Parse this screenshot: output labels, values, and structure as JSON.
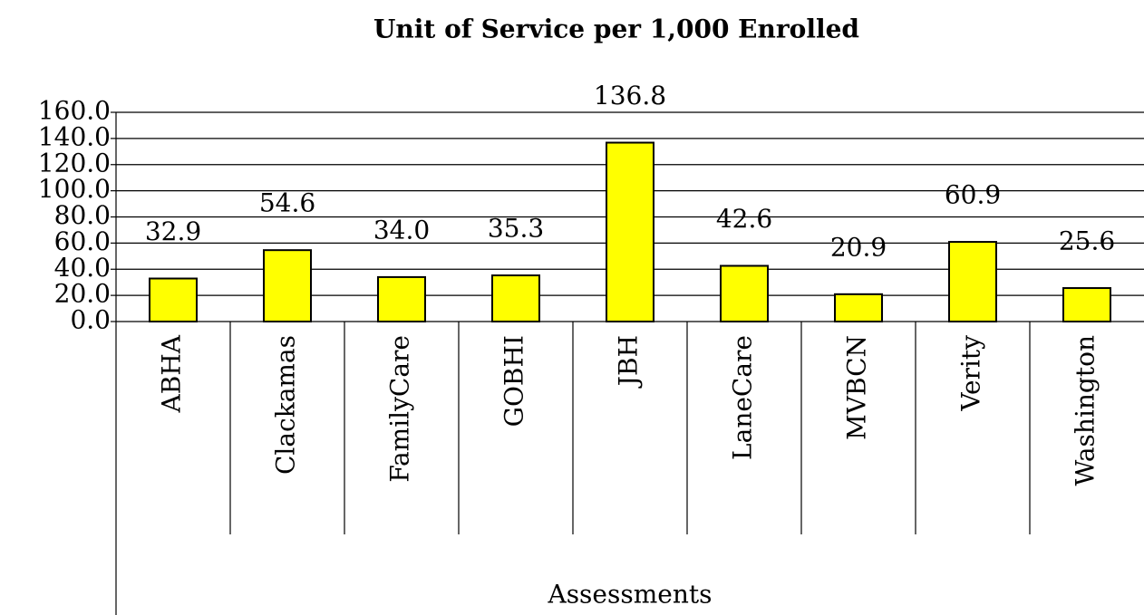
{
  "chart_data": {
    "type": "bar",
    "title": "Unit of Service per 1,000 Enrolled",
    "x_label": "Assessments",
    "categories": [
      "ABHA",
      "Clackamas",
      "FamilyCare",
      "GOBHI",
      "JBH",
      "LaneCare",
      "MVBCN",
      "Verity",
      "Washington"
    ],
    "values": [
      32.9,
      54.6,
      34.0,
      35.3,
      136.8,
      42.6,
      20.9,
      60.9,
      25.6
    ],
    "value_labels": [
      "32.9",
      "54.6",
      "34.0",
      "35.3",
      "136.8",
      "42.6",
      "20.9",
      "60.9",
      "25.6"
    ],
    "color": "#ffff00",
    "ylim": [
      0,
      160
    ],
    "yticks": [
      {
        "value": 0,
        "label": "0.0"
      },
      {
        "value": 20,
        "label": "20.0"
      },
      {
        "value": 40,
        "label": "40.0"
      },
      {
        "value": 60,
        "label": "60.0"
      },
      {
        "value": 80,
        "label": "80.0"
      },
      {
        "value": 100,
        "label": "100.0"
      },
      {
        "value": 120,
        "label": "120.0"
      },
      {
        "value": 140,
        "label": "140.0"
      },
      {
        "value": 160,
        "label": "160.0"
      }
    ],
    "grid": true
  }
}
